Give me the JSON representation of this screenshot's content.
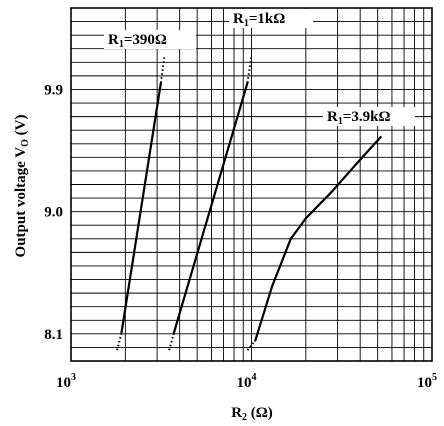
{
  "chart_data": {
    "type": "line",
    "x_scale": "log",
    "xlim": [
      1000,
      100000
    ],
    "ylim": [
      7.9,
      10.5
    ],
    "grid": true,
    "xlabel_main": "R",
    "xlabel_sub": "2",
    "xlabel_unit": " (Ω)",
    "ylabel_main": "Output voltage V",
    "ylabel_sub": "O",
    "ylabel_unit": " (V)",
    "x_ticks": [
      {
        "base": "10",
        "exp": "3",
        "value": 1000
      },
      {
        "base": "10",
        "exp": "4",
        "value": 10000
      },
      {
        "base": "10",
        "exp": "5",
        "value": 100000
      }
    ],
    "y_ticks": [
      {
        "label": "8.1",
        "value": 8.1
      },
      {
        "label": "9.0",
        "value": 9.0
      },
      {
        "label": "9.9",
        "value": 9.9
      }
    ],
    "series": [
      {
        "label_pre": "R",
        "label_sub": "1",
        "label_post": "=390Ω",
        "x": [
          1900,
          3150
        ],
        "y": [
          8.1,
          9.95
        ],
        "dotted_low": [
          [
            1800,
            7.98
          ],
          [
            1900,
            8.1
          ]
        ],
        "dotted_high": [
          [
            3150,
            9.95
          ],
          [
            3300,
            10.15
          ]
        ]
      },
      {
        "label_pre": "R",
        "label_sub": "1",
        "label_post": "=1kΩ",
        "x": [
          3700,
          9500
        ],
        "y": [
          8.1,
          9.95
        ],
        "dotted_low": [
          [
            3500,
            7.98
          ],
          [
            3700,
            8.1
          ]
        ],
        "dotted_high": [
          [
            9500,
            9.95
          ],
          [
            10000,
            10.15
          ]
        ]
      },
      {
        "label_pre": "R",
        "label_sub": "1",
        "label_post": "=3.9kΩ",
        "x": [
          10500,
          13000,
          16500,
          20000,
          28000,
          38000,
          52000
        ],
        "y": [
          8.05,
          8.45,
          8.8,
          8.95,
          9.15,
          9.35,
          9.55
        ],
        "dotted_low": [
          [
            9500,
            7.98
          ],
          [
            10500,
            8.05
          ]
        ],
        "dotted_high": []
      }
    ]
  }
}
